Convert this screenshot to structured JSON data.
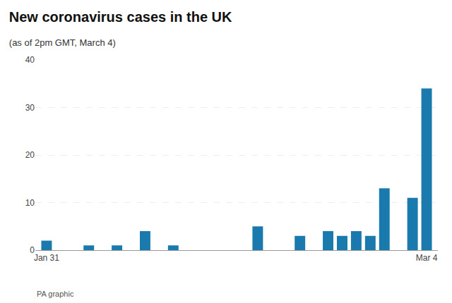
{
  "chart_data": {
    "type": "bar",
    "title": "New coronavirus cases in the UK",
    "subtitle": "(as of 2pm GMT, March 4)",
    "annotations": [
      "PA graphic"
    ],
    "categories": [
      "Jan 31",
      null,
      null,
      null,
      null,
      null,
      null,
      null,
      null,
      null,
      null,
      null,
      null,
      null,
      null,
      null,
      null,
      null,
      null,
      null,
      null,
      null,
      null,
      null,
      null,
      null,
      null,
      "Mar 4"
    ],
    "values": [
      2,
      0,
      0,
      1,
      0,
      1,
      0,
      4,
      0,
      1,
      0,
      0,
      0,
      0,
      0,
      5,
      0,
      0,
      3,
      0,
      4,
      3,
      4,
      3,
      13,
      0,
      11,
      34
    ],
    "color": "#1a7aad",
    "ylim": [
      0,
      40
    ],
    "yticks": [
      0,
      10,
      20,
      30,
      40
    ],
    "grid": true
  }
}
